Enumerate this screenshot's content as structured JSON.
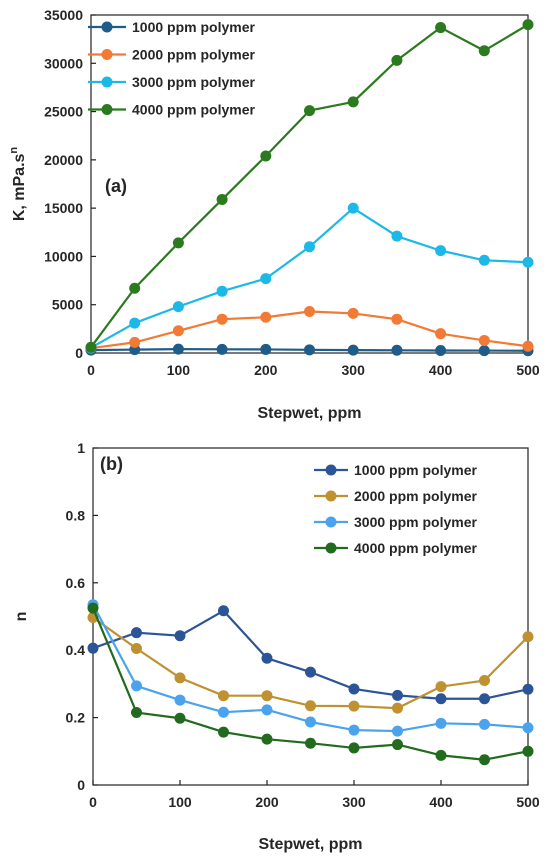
{
  "chart_data": [
    {
      "type": "line",
      "panel_label": "(a)",
      "xlabel": "Stepwet, ppm",
      "ylabel": "K, mPa.s",
      "ylabel_sup": "n",
      "xlim": [
        0,
        500
      ],
      "ylim": [
        0,
        35000
      ],
      "xticks": [
        "0",
        "100",
        "200",
        "300",
        "400",
        "500"
      ],
      "yticks": [
        "0",
        "5000",
        "10000",
        "15000",
        "20000",
        "25000",
        "30000",
        "35000"
      ],
      "grid": false,
      "legend_position": "top-left",
      "x": [
        0,
        50,
        100,
        150,
        200,
        250,
        300,
        350,
        400,
        450,
        500
      ],
      "series": [
        {
          "name": "1000 ppm polymer",
          "color": "#1f5c8a",
          "values": [
            300,
            350,
            400,
            380,
            370,
            330,
            300,
            280,
            260,
            250,
            230
          ]
        },
        {
          "name": "2000 ppm polymer",
          "color": "#f27a35",
          "values": [
            500,
            1100,
            2300,
            3500,
            3700,
            4300,
            4100,
            3500,
            2000,
            1300,
            700
          ]
        },
        {
          "name": "3000 ppm polymer",
          "color": "#1cb8e8",
          "values": [
            550,
            3100,
            4800,
            6400,
            7700,
            11000,
            15000,
            12100,
            10600,
            9600,
            9400
          ]
        },
        {
          "name": "4000 ppm polymer",
          "color": "#2b7a1f",
          "values": [
            600,
            6700,
            11400,
            15900,
            20400,
            25100,
            26000,
            30300,
            33700,
            31300,
            34000
          ]
        }
      ]
    },
    {
      "type": "line",
      "panel_label": "(b)",
      "xlabel": "Stepwet, ppm",
      "ylabel": "n",
      "xlim": [
        0,
        500
      ],
      "ylim": [
        0,
        1
      ],
      "xticks": [
        "0",
        "100",
        "200",
        "300",
        "400",
        "500"
      ],
      "yticks": [
        "0",
        "0.2",
        "0.4",
        "0.6",
        "0.8",
        "1"
      ],
      "grid": false,
      "legend_position": "top-right",
      "x": [
        0,
        50,
        100,
        150,
        200,
        250,
        300,
        350,
        400,
        450,
        500
      ],
      "series": [
        {
          "name": "1000 ppm polymer",
          "color": "#2c5597",
          "values": [
            0.406,
            0.452,
            0.443,
            0.517,
            0.376,
            0.335,
            0.285,
            0.266,
            0.256,
            0.256,
            0.284
          ]
        },
        {
          "name": "2000 ppm polymer",
          "color": "#bf9130",
          "values": [
            0.497,
            0.405,
            0.318,
            0.265,
            0.265,
            0.235,
            0.234,
            0.228,
            0.292,
            0.31,
            0.44
          ]
        },
        {
          "name": "3000 ppm polymer",
          "color": "#4ba3ee",
          "values": [
            0.535,
            0.294,
            0.252,
            0.216,
            0.223,
            0.187,
            0.163,
            0.16,
            0.183,
            0.18,
            0.17
          ]
        },
        {
          "name": "4000 ppm polymer",
          "color": "#226b1e",
          "values": [
            0.525,
            0.215,
            0.198,
            0.157,
            0.136,
            0.124,
            0.11,
            0.12,
            0.088,
            0.075,
            0.1
          ]
        }
      ]
    }
  ]
}
